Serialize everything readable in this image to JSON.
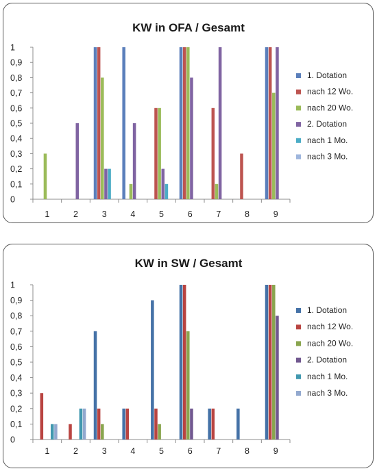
{
  "chart_data": [
    {
      "type": "bar",
      "title": "KW in OFA / Gesamt",
      "xlabel": "",
      "ylabel": "",
      "categories": [
        "1",
        "2",
        "3",
        "4",
        "5",
        "6",
        "7",
        "8",
        "9"
      ],
      "yticks": [
        "0",
        "0,1",
        "0,2",
        "0,3",
        "0,4",
        "0,5",
        "0,6",
        "0,7",
        "0,8",
        "0,9",
        "1"
      ],
      "ylim": [
        0,
        1
      ],
      "grid": false,
      "legend_position": "right",
      "series": [
        {
          "name": "1. Dotation",
          "color": "#5b7fbb",
          "values": [
            0,
            0,
            1,
            1,
            0,
            1,
            0,
            0,
            1
          ]
        },
        {
          "name": "nach 12 Wo.",
          "color": "#bd5450",
          "values": [
            0,
            0,
            1,
            0,
            0.6,
            1,
            0.6,
            0.3,
            1
          ]
        },
        {
          "name": "nach 20 Wo.",
          "color": "#9bbb59",
          "values": [
            0.3,
            0,
            0.8,
            0.1,
            0.6,
            1,
            0.1,
            0,
            0.7
          ]
        },
        {
          "name": "2. Dotation",
          "color": "#8064a2",
          "values": [
            0,
            0.5,
            0.2,
            0.5,
            0.2,
            0.8,
            1,
            0,
            1
          ]
        },
        {
          "name": "nach 1 Mo.",
          "color": "#4bacc6",
          "values": [
            0,
            0,
            0.2,
            0,
            0.1,
            0,
            0,
            0,
            0
          ]
        },
        {
          "name": "nach 3 Mo.",
          "color": "#9fb6dd",
          "values": [
            0,
            0,
            0,
            0,
            0,
            0,
            0,
            0,
            0
          ]
        }
      ]
    },
    {
      "type": "bar",
      "title": "KW in SW / Gesamt",
      "xlabel": "",
      "ylabel": "",
      "categories": [
        "1",
        "2",
        "3",
        "4",
        "5",
        "6",
        "7",
        "8",
        "9"
      ],
      "yticks": [
        "0",
        "0,1",
        "0,2",
        "0,3",
        "0,4",
        "0,5",
        "0,6",
        "0,7",
        "0,8",
        "0,9",
        "1"
      ],
      "ylim": [
        0,
        1
      ],
      "grid": false,
      "legend_position": "right",
      "series": [
        {
          "name": "1. Dotation",
          "color": "#4572a7",
          "values": [
            0,
            0,
            0.7,
            0.2,
            0.9,
            1,
            0.2,
            0.2,
            1
          ]
        },
        {
          "name": "nach 12 Wo.",
          "color": "#b94441",
          "values": [
            0.3,
            0.1,
            0.2,
            0.2,
            0.2,
            1,
            0.2,
            0,
            1
          ]
        },
        {
          "name": "nach 20 Wo.",
          "color": "#89a54e",
          "values": [
            0,
            0,
            0.1,
            0,
            0.1,
            0.7,
            0,
            0,
            1
          ]
        },
        {
          "name": "2. Dotation",
          "color": "#71588f",
          "values": [
            0,
            0,
            0,
            0,
            0,
            0.2,
            0,
            0,
            0.8
          ]
        },
        {
          "name": "nach 1 Mo.",
          "color": "#4198af",
          "values": [
            0.1,
            0.2,
            0,
            0,
            0,
            0,
            0,
            0,
            0
          ]
        },
        {
          "name": "nach 3 Mo.",
          "color": "#93a9cf",
          "values": [
            0.1,
            0.2,
            0,
            0,
            0,
            0,
            0,
            0,
            0
          ]
        }
      ]
    }
  ]
}
